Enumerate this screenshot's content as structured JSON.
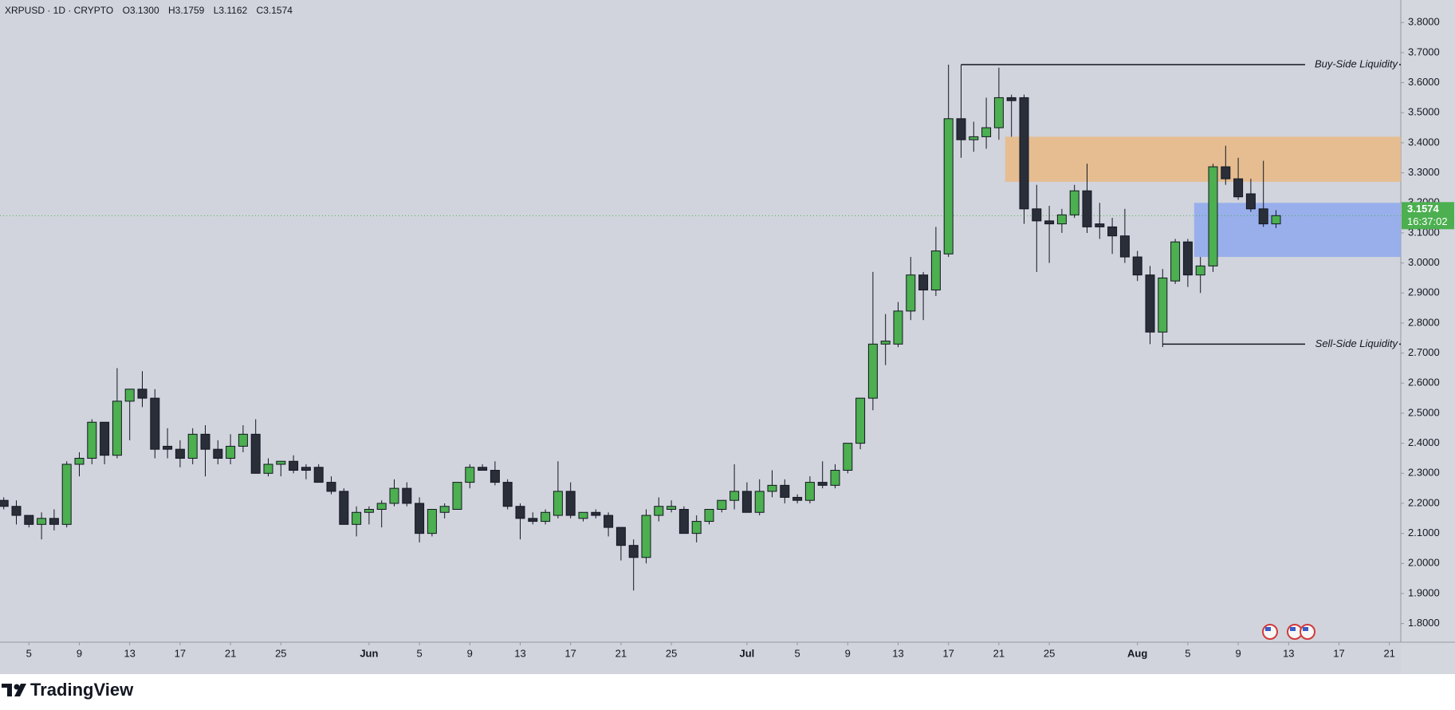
{
  "chart_data": {
    "type": "candlestick",
    "title": "XRPUSD · 1D · CRYPTO",
    "ohlc_labels": [
      "O3.1300",
      "H3.1759",
      "L3.1162",
      "C3.1574"
    ],
    "categories": [
      null,
      null,
      "5",
      null,
      null,
      null,
      "9",
      null,
      null,
      null,
      "13",
      null,
      null,
      null,
      "17",
      null,
      null,
      null,
      "21",
      null,
      null,
      null,
      "25",
      null,
      null,
      null,
      null,
      null,
      null,
      "Jun",
      null,
      null,
      null,
      "5",
      null,
      null,
      null,
      "9",
      null,
      null,
      null,
      "13",
      null,
      null,
      null,
      "17",
      null,
      null,
      null,
      "21",
      null,
      null,
      null,
      "25",
      null,
      null,
      null,
      null,
      null,
      "Jul",
      null,
      null,
      null,
      "5",
      null,
      null,
      null,
      "9",
      null,
      null,
      null,
      "13",
      null,
      null,
      null,
      "17",
      null,
      null,
      null,
      "21",
      null,
      null,
      null,
      "25",
      null,
      null,
      null,
      null,
      null,
      null,
      "Aug",
      null,
      null,
      null,
      "5",
      null,
      null,
      null,
      "9",
      null,
      null,
      null,
      "13",
      null,
      null,
      null,
      "17",
      null,
      null,
      null,
      "21",
      null
    ],
    "open": [
      2.21,
      2.19,
      2.16,
      2.13,
      2.15,
      2.13,
      2.33,
      2.35,
      2.47,
      2.36,
      2.54,
      2.58,
      2.55,
      2.39,
      2.38,
      2.35,
      2.43,
      2.38,
      2.35,
      2.39,
      2.43,
      2.3,
      2.33,
      2.34,
      2.32,
      2.32,
      2.27,
      2.24,
      2.13,
      2.17,
      2.18,
      2.2,
      2.25,
      2.2,
      2.1,
      2.17,
      2.18,
      2.27,
      2.32,
      2.31,
      2.27,
      2.19,
      2.15,
      2.14,
      2.16,
      2.24,
      2.15,
      2.17,
      2.16,
      2.12,
      2.06,
      2.02,
      2.16,
      2.18,
      2.18,
      2.1,
      2.14,
      2.18,
      2.21,
      2.24,
      2.17,
      2.24,
      2.26,
      2.22,
      2.21,
      2.27,
      2.26,
      2.31,
      2.4,
      2.55,
      2.73,
      2.73,
      2.84,
      2.96,
      2.91,
      3.03,
      3.48,
      3.41,
      3.42,
      3.45,
      3.55,
      3.55,
      3.18,
      3.14,
      3.13,
      3.16,
      3.24,
      3.13,
      3.12,
      3.09,
      3.02,
      2.96,
      2.77,
      2.94,
      3.07,
      2.96,
      2.99,
      3.32,
      3.28,
      3.23,
      3.18,
      3.13,
      null,
      null,
      null,
      null,
      null,
      null,
      null,
      null,
      null,
      null
    ],
    "high": [
      2.22,
      2.21,
      2.16,
      2.17,
      2.18,
      2.34,
      2.37,
      2.48,
      2.47,
      2.65,
      2.58,
      2.64,
      2.58,
      2.45,
      2.41,
      2.45,
      2.46,
      2.41,
      2.43,
      2.46,
      2.48,
      2.35,
      2.34,
      2.36,
      2.33,
      2.33,
      2.29,
      2.25,
      2.19,
      2.19,
      2.21,
      2.28,
      2.27,
      2.22,
      2.18,
      2.2,
      2.27,
      2.33,
      2.33,
      2.34,
      2.28,
      2.2,
      2.17,
      2.18,
      2.34,
      2.27,
      2.17,
      2.18,
      2.17,
      2.12,
      2.08,
      2.18,
      2.22,
      2.21,
      2.19,
      2.16,
      2.18,
      2.21,
      2.33,
      2.27,
      2.28,
      2.31,
      2.28,
      2.23,
      2.29,
      2.34,
      2.33,
      2.4,
      2.55,
      2.97,
      2.83,
      2.87,
      3.02,
      2.97,
      3.12,
      3.66,
      3.66,
      3.47,
      3.55,
      3.65,
      3.56,
      3.56,
      3.26,
      3.19,
      3.18,
      3.26,
      3.33,
      3.2,
      3.15,
      3.18,
      3.04,
      2.99,
      2.98,
      3.08,
      3.08,
      3.02,
      3.33,
      3.39,
      3.35,
      3.28,
      3.34,
      3.1759,
      null,
      null,
      null,
      null,
      null,
      null,
      null,
      null,
      null,
      null
    ],
    "low": [
      2.18,
      2.13,
      2.12,
      2.08,
      2.11,
      2.12,
      2.29,
      2.33,
      2.33,
      2.35,
      2.41,
      2.52,
      2.35,
      2.35,
      2.32,
      2.33,
      2.29,
      2.33,
      2.33,
      2.37,
      2.3,
      2.29,
      2.29,
      2.3,
      2.28,
      2.27,
      2.23,
      2.13,
      2.09,
      2.13,
      2.12,
      2.19,
      2.19,
      2.07,
      2.09,
      2.15,
      2.18,
      2.25,
      2.31,
      2.26,
      2.18,
      2.08,
      2.13,
      2.13,
      2.15,
      2.15,
      2.14,
      2.15,
      2.09,
      2.01,
      1.91,
      2.0,
      2.14,
      2.17,
      2.1,
      2.07,
      2.13,
      2.17,
      2.18,
      2.17,
      2.16,
      2.22,
      2.2,
      2.2,
      2.2,
      2.25,
      2.25,
      2.3,
      2.38,
      2.51,
      2.66,
      2.72,
      2.81,
      2.81,
      2.89,
      3.02,
      3.35,
      3.37,
      3.38,
      3.41,
      3.42,
      3.13,
      2.97,
      3.0,
      3.1,
      3.15,
      3.1,
      3.08,
      3.03,
      3.0,
      2.94,
      2.73,
      2.72,
      2.93,
      2.92,
      2.9,
      2.97,
      3.26,
      3.21,
      3.17,
      3.12,
      3.1162,
      null,
      null,
      null,
      null,
      null,
      null,
      null,
      null,
      null,
      null
    ],
    "close": [
      2.19,
      2.16,
      2.13,
      2.15,
      2.13,
      2.33,
      2.35,
      2.47,
      2.36,
      2.54,
      2.58,
      2.55,
      2.38,
      2.38,
      2.35,
      2.43,
      2.38,
      2.35,
      2.39,
      2.43,
      2.3,
      2.33,
      2.34,
      2.31,
      2.31,
      2.27,
      2.24,
      2.13,
      2.17,
      2.18,
      2.2,
      2.25,
      2.2,
      2.1,
      2.18,
      2.19,
      2.27,
      2.32,
      2.31,
      2.27,
      2.19,
      2.15,
      2.14,
      2.17,
      2.24,
      2.16,
      2.17,
      2.16,
      2.12,
      2.06,
      2.02,
      2.16,
      2.19,
      2.19,
      2.1,
      2.14,
      2.18,
      2.21,
      2.24,
      2.17,
      2.24,
      2.26,
      2.22,
      2.21,
      2.27,
      2.26,
      2.31,
      2.4,
      2.55,
      2.73,
      2.74,
      2.84,
      2.96,
      2.91,
      3.04,
      3.48,
      3.41,
      3.42,
      3.45,
      3.55,
      3.54,
      3.18,
      3.14,
      3.13,
      3.16,
      3.24,
      3.12,
      3.12,
      3.09,
      3.02,
      2.96,
      2.77,
      2.95,
      3.07,
      2.96,
      2.99,
      3.32,
      3.28,
      3.22,
      3.18,
      3.13,
      3.1574,
      null,
      null,
      null,
      null,
      null,
      null,
      null,
      null,
      null,
      null
    ],
    "up_color": "#4caf50",
    "down_color": "#2a2e39",
    "ylim": [
      1.738,
      3.875
    ],
    "yticks": [
      {
        "value": 1.8,
        "label": "1.8000"
      },
      {
        "value": 1.9,
        "label": "1.9000"
      },
      {
        "value": 2.0,
        "label": "2.0000"
      },
      {
        "value": 2.1,
        "label": "2.1000"
      },
      {
        "value": 2.2,
        "label": "2.2000"
      },
      {
        "value": 2.3,
        "label": "2.3000"
      },
      {
        "value": 2.4,
        "label": "2.4000"
      },
      {
        "value": 2.5,
        "label": "2.5000"
      },
      {
        "value": 2.6,
        "label": "2.6000"
      },
      {
        "value": 2.7,
        "label": "2.7000"
      },
      {
        "value": 2.8,
        "label": "2.8000"
      },
      {
        "value": 2.9,
        "label": "2.9000"
      },
      {
        "value": 3.0,
        "label": "3.0000"
      },
      {
        "value": 3.1,
        "label": "3.1000"
      },
      {
        "value": 3.2,
        "label": "3.2000"
      },
      {
        "value": 3.3,
        "label": "3.3000"
      },
      {
        "value": 3.4,
        "label": "3.4000"
      },
      {
        "value": 3.5,
        "label": "3.5000"
      },
      {
        "value": 3.6,
        "label": "3.6000"
      },
      {
        "value": 3.7,
        "label": "3.7000"
      },
      {
        "value": 3.8,
        "label": "3.8000"
      }
    ],
    "grid": false,
    "zones": [
      {
        "low": 3.27,
        "high": 3.42,
        "start": 80,
        "color": "#e9b984"
      },
      {
        "low": 3.02,
        "high": 3.2,
        "start": 95,
        "color": "#8ea8ef"
      }
    ],
    "liquidity_lines": [
      {
        "label": "Buy-Side Liquidity",
        "value": 3.66,
        "start": 76
      },
      {
        "label": "Sell-Side Liquidity",
        "value": 2.73,
        "start": 92
      }
    ],
    "last_price": 3.1574,
    "countdown": "16:37:02"
  },
  "brand": "TradingView"
}
